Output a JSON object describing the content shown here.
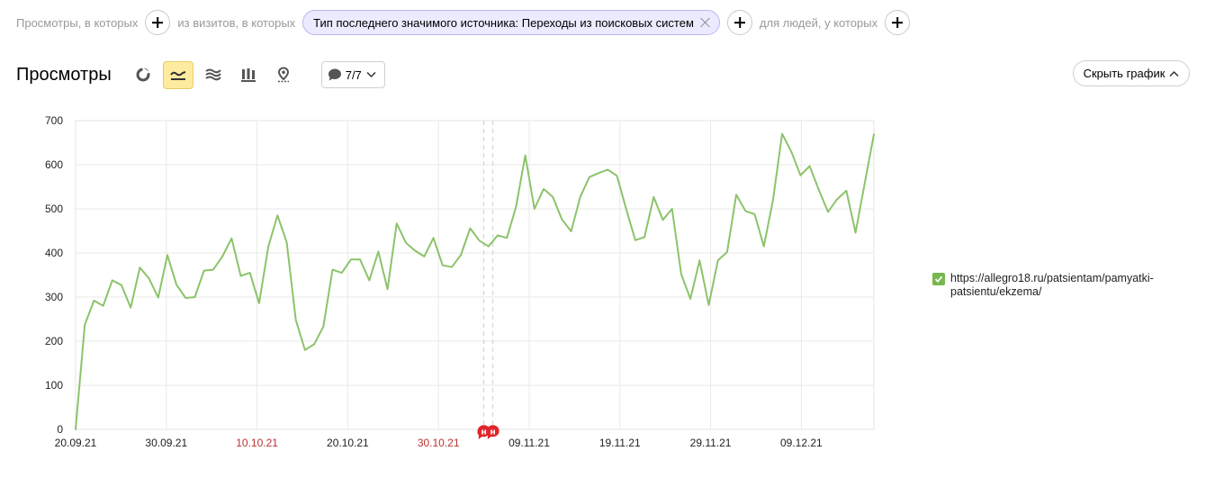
{
  "filters": {
    "label_views": "Просмотры, в которых",
    "label_visits": "из визитов, в которых",
    "chip_text": "Тип последнего значимого источника: Переходы из поисковых систем",
    "label_people": "для людей, у которых"
  },
  "header": {
    "title": "Просмотры",
    "comments_count": "7/7",
    "hide_chart_label": "Скрыть график"
  },
  "colors": {
    "line": "#8cc36b",
    "holiday_label": "#b8312f",
    "accent_active": "#ffeba0",
    "marker": "#e0262c"
  },
  "chart_data": {
    "type": "line",
    "ylim": [
      0,
      700
    ],
    "yticks": [
      "0",
      "100",
      "200",
      "300",
      "400",
      "500",
      "600",
      "700"
    ],
    "xticks": [
      {
        "label": "20.09.21",
        "holiday": false
      },
      {
        "label": "30.09.21",
        "holiday": false
      },
      {
        "label": "10.10.21",
        "holiday": true
      },
      {
        "label": "20.10.21",
        "holiday": false
      },
      {
        "label": "30.10.21",
        "holiday": true
      },
      {
        "label": "09.11.21",
        "holiday": false
      },
      {
        "label": "19.11.21",
        "holiday": false
      },
      {
        "label": "29.11.21",
        "holiday": false
      },
      {
        "label": "09.12.21",
        "holiday": false
      }
    ],
    "start": "20.09.21",
    "end": "17.12.21",
    "event_markers": [
      {
        "date": "04.11.21",
        "glyph": "н"
      },
      {
        "date": "05.11.21",
        "glyph": "н"
      }
    ],
    "series": [
      {
        "name": "https://allegro18.ru/patsientam/pamyatki-patsientu/ekzema/",
        "values": [
          0,
          237,
          292,
          280,
          338,
          327,
          276,
          367,
          342,
          299,
          395,
          328,
          298,
          300,
          360,
          362,
          392,
          433,
          348,
          355,
          286,
          414,
          485,
          425,
          248,
          180,
          193,
          233,
          362,
          355,
          385,
          385,
          338,
          403,
          318,
          467,
          423,
          405,
          392,
          434,
          372,
          368,
          396,
          456,
          428,
          415,
          440,
          434,
          505,
          621,
          500,
          545,
          527,
          476,
          449,
          527,
          572,
          581,
          589,
          575,
          500,
          429,
          436,
          527,
          475,
          500,
          352,
          296,
          383,
          282,
          383,
          402,
          532,
          495,
          488,
          415,
          520,
          670,
          630,
          576,
          597,
          543,
          493,
          522,
          541,
          446,
          558,
          669
        ]
      }
    ]
  }
}
